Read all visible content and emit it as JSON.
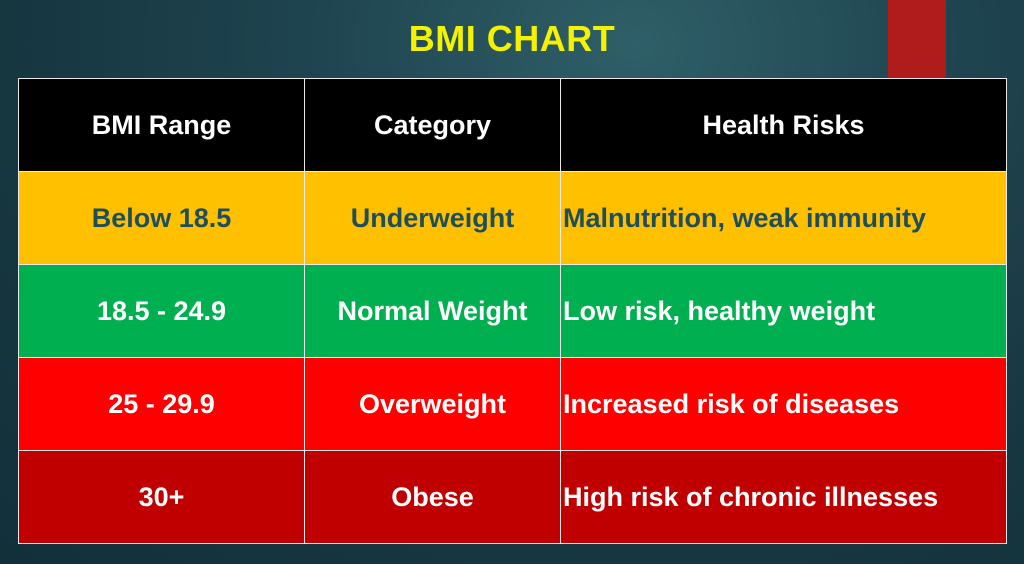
{
  "title": "BMI CHART",
  "table": {
    "headers": [
      "BMI Range",
      "Category",
      "Health Risks"
    ],
    "rows": [
      {
        "range": "Below 18.5",
        "category": "Underweight",
        "risk": "Malnutrition, weak immunity",
        "color": "#ffc000",
        "text_color": "#1f4e5b"
      },
      {
        "range": "18.5 - 24.9",
        "category": "Normal Weight",
        "risk": "Low risk, healthy weight",
        "color": "#00b050",
        "text_color": "#ffffff"
      },
      {
        "range": "25 - 29.9",
        "category": "Overweight",
        "risk": "Increased risk of diseases",
        "color": "#ff0000",
        "text_color": "#ffffff"
      },
      {
        "range": "30+",
        "category": "Obese",
        "risk": "High risk of chronic illnesses",
        "color": "#c00000",
        "text_color": "#ffffff"
      }
    ]
  },
  "colors": {
    "title": "#f5f200",
    "header_bg": "#000000",
    "accent_bar": "#b01b1b",
    "background": "#1f4550"
  }
}
